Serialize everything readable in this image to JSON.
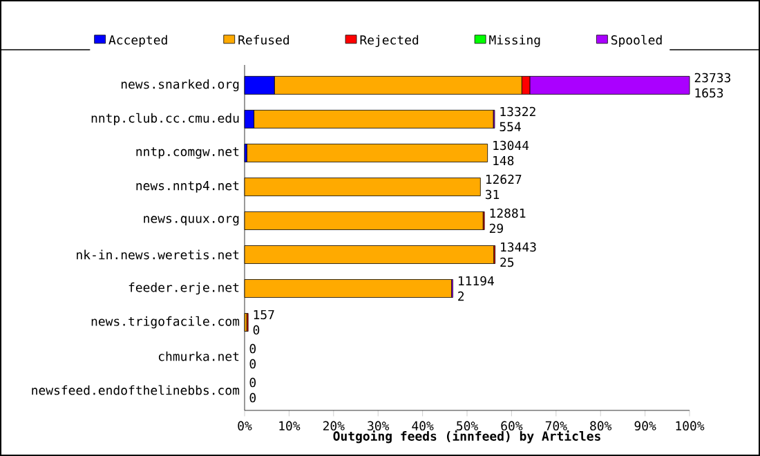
{
  "chart_data": {
    "type": "bar",
    "orientation": "horizontal",
    "stacked": true,
    "title": "Outgoing feeds (innfeed) by Articles",
    "categories": [
      "news.snarked.org",
      "nntp.club.cc.cmu.edu",
      "nntp.comgw.net",
      "news.nntp4.net",
      "news.quux.org",
      "nk-in.news.weretis.net",
      "feeder.erje.net",
      "news.trigofacile.com",
      "chmurka.net",
      "newsfeed.endofthelinebbs.com"
    ],
    "series": [
      {
        "name": "Accepted",
        "color": "#0000ff",
        "values": [
          6.7,
          2.1,
          0.5,
          0,
          0,
          0,
          0,
          0,
          0,
          0
        ]
      },
      {
        "name": "Refused",
        "color": "#ffaa00",
        "values": [
          55.6,
          53.8,
          54.1,
          53.0,
          53.6,
          56.0,
          46.5,
          0.5,
          0,
          0
        ]
      },
      {
        "name": "Rejected",
        "color": "#ff0000",
        "values": [
          1.8,
          0,
          0,
          0,
          0.3,
          0.3,
          0,
          0.3,
          0,
          0
        ]
      },
      {
        "name": "Missing",
        "color": "#00ff00",
        "values": [
          0,
          0,
          0,
          0,
          0,
          0,
          0,
          0,
          0,
          0
        ]
      },
      {
        "name": "Spooled",
        "color": "#aa00ff",
        "values": [
          35.9,
          0.3,
          0,
          0,
          0,
          0,
          0.3,
          0,
          0,
          0
        ]
      }
    ],
    "xlim": [
      0,
      100
    ],
    "xticks": [
      {
        "value": 0,
        "label": "0%"
      },
      {
        "value": 10,
        "label": "10%"
      },
      {
        "value": 20,
        "label": "20%"
      },
      {
        "value": 30,
        "label": "30%"
      },
      {
        "value": 40,
        "label": "40%"
      },
      {
        "value": 50,
        "label": "50%"
      },
      {
        "value": 60,
        "label": "60%"
      },
      {
        "value": 70,
        "label": "70%"
      },
      {
        "value": 80,
        "label": "80%"
      },
      {
        "value": 90,
        "label": "90%"
      },
      {
        "value": 100,
        "label": "100%"
      }
    ],
    "legend": "top",
    "annotations": [
      {
        "text": "23733",
        "x": 100,
        "y": "news.snarked.org"
      },
      {
        "text": "1653",
        "x": 100,
        "y": "news.snarked.org"
      },
      {
        "text": "13322",
        "x": 56.2,
        "y": "nntp.club.cc.cmu.edu"
      },
      {
        "text": "554",
        "x": 56.2,
        "y": "nntp.club.cc.cmu.edu"
      },
      {
        "text": "13044",
        "x": 54.6,
        "y": "nntp.comgw.net"
      },
      {
        "text": "148",
        "x": 54.6,
        "y": "nntp.comgw.net"
      },
      {
        "text": "12627",
        "x": 53.0,
        "y": "news.nntp4.net"
      },
      {
        "text": "31",
        "x": 53.0,
        "y": "news.nntp4.net"
      },
      {
        "text": "12881",
        "x": 53.9,
        "y": "news.quux.org"
      },
      {
        "text": "29",
        "x": 53.9,
        "y": "news.quux.org"
      },
      {
        "text": "13443",
        "x": 56.3,
        "y": "nk-in.news.weretis.net"
      },
      {
        "text": "25",
        "x": 56.3,
        "y": "nk-in.news.weretis.net"
      },
      {
        "text": "11194",
        "x": 46.8,
        "y": "feeder.erje.net"
      },
      {
        "text": "2",
        "x": 46.8,
        "y": "feeder.erje.net"
      },
      {
        "text": "157",
        "x": 0.8,
        "y": "news.trigofacile.com"
      },
      {
        "text": "0",
        "x": 0.8,
        "y": "news.trigofacile.com"
      },
      {
        "text": "0",
        "x": 0,
        "y": "chmurka.net"
      },
      {
        "text": "0",
        "x": 0,
        "y": "chmurka.net"
      },
      {
        "text": "0",
        "x": 0,
        "y": "newsfeed.endofthelinebbs.com"
      },
      {
        "text": "0",
        "x": 0,
        "y": "newsfeed.endofthelinebbs.com"
      }
    ]
  }
}
